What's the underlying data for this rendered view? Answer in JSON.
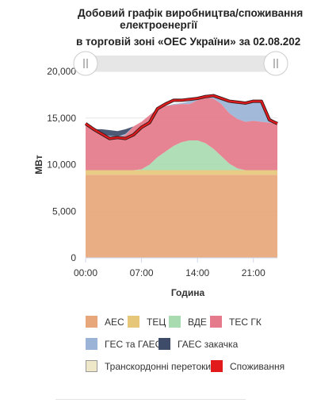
{
  "title": {
    "line1": "Добовий графік виробництва/споживання",
    "line2": "електроенергії",
    "line3": "в торговій зоні «ОЕС України» за 02.08.202"
  },
  "chart_data": {
    "type": "area",
    "stacked": true,
    "ylabel": "МВт",
    "xlabel": "Година",
    "ylim": [
      0,
      20000
    ],
    "yticks": [
      "0",
      "5,000",
      "10,000",
      "15,000",
      "20,000"
    ],
    "xticks": [
      "00:00",
      "07:00",
      "14:00",
      "21:00"
    ],
    "x": [
      0,
      1,
      2,
      3,
      4,
      5,
      6,
      7,
      8,
      9,
      10,
      11,
      12,
      13,
      14,
      15,
      16,
      17,
      18,
      19,
      20,
      21,
      22,
      23,
      24
    ],
    "series": [
      {
        "name": "АЕС",
        "color": "#e8a77a",
        "type": "area",
        "values": [
          8900,
          8900,
          8900,
          8900,
          8900,
          8900,
          8900,
          8900,
          8900,
          8900,
          8900,
          8900,
          8900,
          8900,
          8900,
          8900,
          8900,
          8900,
          8900,
          8900,
          8900,
          8900,
          8900,
          8900,
          8900
        ]
      },
      {
        "name": "ТЕЦ",
        "color": "#e6c77a",
        "type": "area",
        "values": [
          500,
          500,
          500,
          500,
          500,
          500,
          500,
          500,
          500,
          500,
          500,
          500,
          500,
          500,
          500,
          500,
          500,
          500,
          500,
          500,
          500,
          500,
          500,
          500,
          500
        ]
      },
      {
        "name": "ВДЕ",
        "color": "#a9dbb0",
        "type": "area",
        "values": [
          0,
          0,
          0,
          0,
          0,
          0,
          0,
          100,
          600,
          1400,
          2000,
          2600,
          3000,
          3200,
          3200,
          2900,
          2300,
          1500,
          700,
          200,
          0,
          0,
          0,
          0,
          0
        ]
      },
      {
        "name": "ТЕС ГК",
        "color": "#e47a8b",
        "type": "area",
        "values": [
          5000,
          4400,
          3900,
          3600,
          3400,
          3800,
          4700,
          5100,
          5300,
          5200,
          4900,
          4400,
          4100,
          3900,
          4300,
          4900,
          5400,
          5600,
          5400,
          5300,
          5200,
          5300,
          5200,
          5100,
          5000
        ]
      },
      {
        "name": "ГЕС та ГАЕС",
        "color": "#9ab3d6",
        "type": "area",
        "values": [
          0,
          0,
          0,
          100,
          200,
          100,
          0,
          0,
          0,
          0,
          0,
          100,
          100,
          300,
          300,
          300,
          300,
          500,
          1100,
          1700,
          1900,
          2000,
          2200,
          600,
          0
        ]
      },
      {
        "name": "ГАЕС закачка",
        "color": "#3e4c69",
        "type": "area",
        "values": [
          0,
          0,
          500,
          600,
          600,
          500,
          0,
          0,
          0,
          0,
          0,
          0,
          0,
          0,
          0,
          0,
          0,
          0,
          0,
          0,
          0,
          0,
          0,
          0,
          0
        ]
      },
      {
        "name": "Транскордонні перетоки",
        "color": "#eee8c8",
        "border": "#999999",
        "type": "area",
        "values": [
          0,
          0,
          0,
          0,
          0,
          0,
          0,
          0,
          0,
          0,
          0,
          0,
          0,
          0,
          0,
          0,
          0,
          0,
          0,
          0,
          0,
          0,
          0,
          0,
          0
        ]
      },
      {
        "name": "Споживання",
        "color": "#e31a1c",
        "type": "line",
        "values": [
          14400,
          13800,
          13300,
          12800,
          12900,
          12800,
          13200,
          14000,
          14500,
          16000,
          16500,
          16900,
          16900,
          17000,
          17100,
          17300,
          17400,
          17100,
          16800,
          16700,
          16600,
          16800,
          16800,
          14800,
          14400
        ]
      }
    ],
    "legend_position": "bottom",
    "grid": true
  }
}
